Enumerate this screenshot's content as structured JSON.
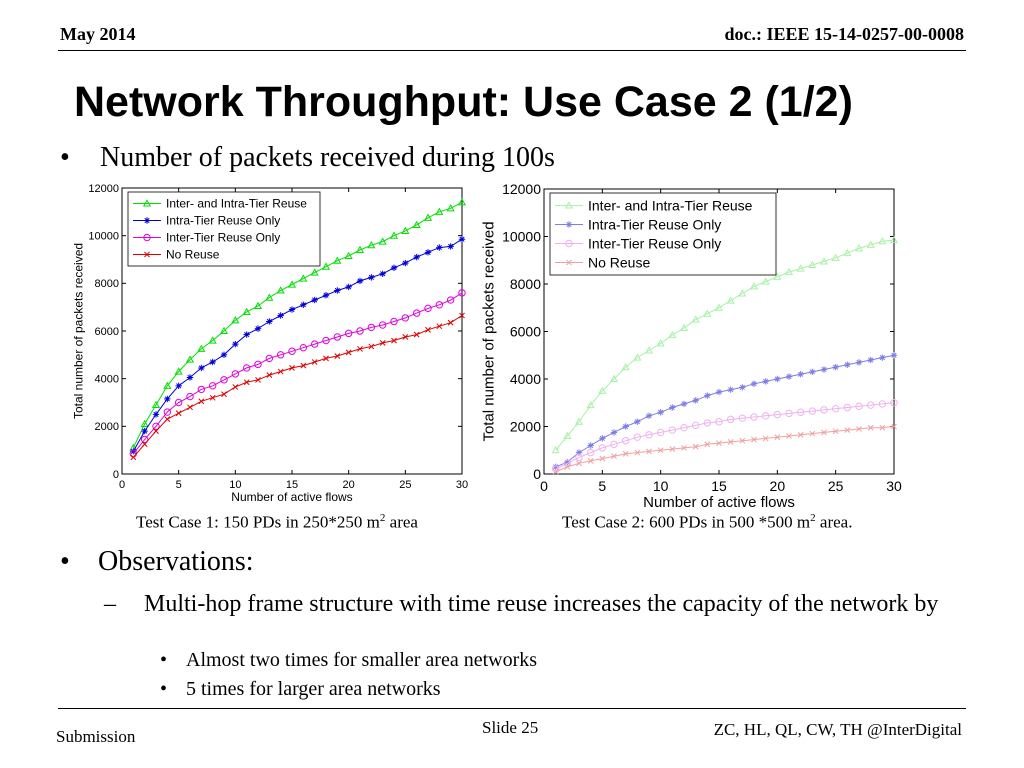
{
  "header": {
    "date": "May 2014",
    "doc": "doc.: IEEE 15-14-0257-00-0008"
  },
  "title": "Network Throughput: Use Case 2 (1/2)",
  "bullet_top": "Number of packets received during 100s",
  "captions": {
    "left": {
      "text": "Test Case 1: 150 PDs in 250*250 m",
      "sup": "2",
      "after": " area"
    },
    "right": {
      "text": "Test Case 2: 600 PDs in 500 *500 m",
      "sup": "2",
      "after": " area."
    }
  },
  "observations": {
    "heading": "Observations:",
    "item": "Multi-hop frame structure with time reuse increases the capacity of the network by",
    "sub_items": [
      "Almost two times for smaller area networks",
      "5 times for larger area networks"
    ]
  },
  "footer": {
    "left": "Submission",
    "center": "Slide 25",
    "right": "ZC, HL, QL, CW, TH @InterDigital"
  },
  "chart_data": [
    {
      "type": "line",
      "xlabel": "Number of active flows",
      "ylabel": "Total number of packets received",
      "xlim": [
        0,
        30
      ],
      "ylim": [
        0,
        12000
      ],
      "xticks": [
        0,
        5,
        10,
        15,
        20,
        25,
        30
      ],
      "yticks": [
        0,
        2000,
        4000,
        6000,
        8000,
        10000,
        12000
      ],
      "legend_position": "top-left",
      "x": [
        1,
        2,
        3,
        4,
        5,
        6,
        7,
        8,
        9,
        10,
        11,
        12,
        13,
        14,
        15,
        16,
        17,
        18,
        19,
        20,
        21,
        22,
        23,
        24,
        25,
        26,
        27,
        28,
        29,
        30
      ],
      "series": [
        {
          "name": "Inter- and Intra-Tier Reuse",
          "color": "#00e000",
          "marker": "triangle",
          "values": [
            1100,
            2100,
            2900,
            3700,
            4300,
            4800,
            5250,
            5600,
            6000,
            6450,
            6800,
            7050,
            7400,
            7700,
            7950,
            8200,
            8450,
            8700,
            8950,
            9150,
            9400,
            9600,
            9750,
            10000,
            10200,
            10450,
            10750,
            11000,
            11150,
            11400
          ]
        },
        {
          "name": "Intra-Tier Reuse Only",
          "color": "#0000dd",
          "marker": "star",
          "values": [
            950,
            1800,
            2500,
            3150,
            3700,
            4050,
            4450,
            4700,
            5000,
            5450,
            5850,
            6100,
            6400,
            6650,
            6900,
            7100,
            7300,
            7500,
            7700,
            7850,
            8100,
            8250,
            8400,
            8650,
            8850,
            9100,
            9300,
            9500,
            9550,
            9850
          ]
        },
        {
          "name": "Inter-Tier Reuse Only",
          "color": "#e000e0",
          "marker": "circle",
          "values": [
            850,
            1450,
            2000,
            2600,
            3000,
            3250,
            3550,
            3700,
            3950,
            4200,
            4450,
            4600,
            4850,
            5000,
            5150,
            5300,
            5450,
            5600,
            5750,
            5900,
            6000,
            6150,
            6250,
            6400,
            6550,
            6750,
            6950,
            7100,
            7300,
            7600
          ]
        },
        {
          "name": "No Reuse",
          "color": "#e00000",
          "marker": "x",
          "values": [
            700,
            1250,
            1800,
            2300,
            2550,
            2800,
            3050,
            3200,
            3350,
            3650,
            3850,
            3950,
            4150,
            4300,
            4450,
            4550,
            4700,
            4850,
            4950,
            5100,
            5250,
            5350,
            5500,
            5600,
            5750,
            5850,
            6050,
            6200,
            6350,
            6650
          ]
        }
      ]
    },
    {
      "type": "line",
      "xlabel": "Number of active flows",
      "ylabel": "Total number of packets received",
      "xlim": [
        0,
        30
      ],
      "ylim": [
        0,
        12000
      ],
      "xticks": [
        0,
        5,
        10,
        15,
        20,
        25,
        30
      ],
      "yticks": [
        0,
        2000,
        4000,
        6000,
        8000,
        10000,
        12000
      ],
      "legend_position": "top-left",
      "x": [
        1,
        2,
        3,
        4,
        5,
        6,
        7,
        8,
        9,
        10,
        11,
        12,
        13,
        14,
        15,
        16,
        17,
        18,
        19,
        20,
        21,
        22,
        23,
        24,
        25,
        26,
        27,
        28,
        29,
        30
      ],
      "series": [
        {
          "name": "Inter- and Intra-Tier Reuse",
          "color": "#a6f2a6",
          "marker": "triangle",
          "values": [
            1000,
            1600,
            2200,
            2900,
            3500,
            4000,
            4500,
            4900,
            5200,
            5500,
            5850,
            6150,
            6500,
            6750,
            7000,
            7300,
            7600,
            7900,
            8100,
            8300,
            8500,
            8650,
            8800,
            8950,
            9100,
            9300,
            9500,
            9650,
            9800,
            9850
          ]
        },
        {
          "name": "Intra-Tier Reuse Only",
          "color": "#7d7de6",
          "marker": "star",
          "values": [
            300,
            500,
            900,
            1200,
            1500,
            1750,
            2000,
            2200,
            2450,
            2600,
            2800,
            2950,
            3100,
            3300,
            3450,
            3550,
            3650,
            3800,
            3900,
            4000,
            4100,
            4200,
            4300,
            4400,
            4500,
            4600,
            4700,
            4800,
            4900,
            5000
          ]
        },
        {
          "name": "Inter-Tier Reuse Only",
          "color": "#f0b0f0",
          "marker": "circle",
          "values": [
            200,
            450,
            700,
            900,
            1100,
            1250,
            1400,
            1550,
            1650,
            1750,
            1850,
            1950,
            2050,
            2150,
            2200,
            2300,
            2350,
            2400,
            2450,
            2500,
            2550,
            2600,
            2650,
            2700,
            2750,
            2800,
            2850,
            2900,
            2950,
            3000
          ]
        },
        {
          "name": "No Reuse",
          "color": "#f0a0a0",
          "marker": "x",
          "values": [
            100,
            300,
            450,
            550,
            650,
            750,
            850,
            900,
            950,
            1000,
            1050,
            1100,
            1150,
            1250,
            1300,
            1350,
            1400,
            1450,
            1500,
            1550,
            1600,
            1650,
            1700,
            1750,
            1800,
            1850,
            1900,
            1950,
            1950,
            2000
          ]
        }
      ]
    }
  ]
}
